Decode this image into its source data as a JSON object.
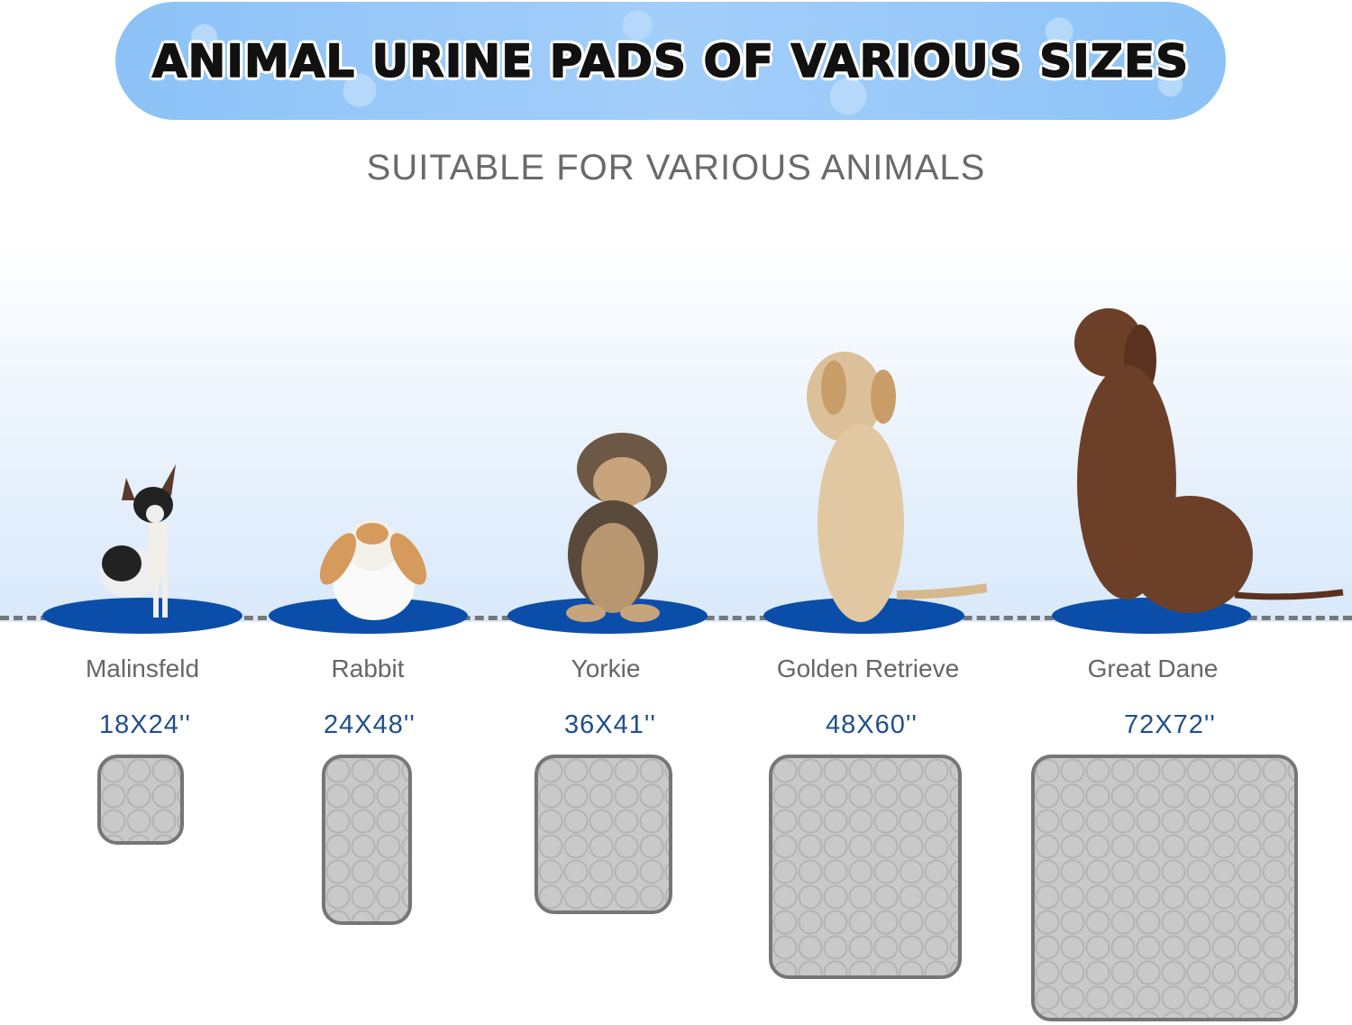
{
  "banner": {
    "title": "ANIMAL URINE PADS OF VARIOUS SIZES"
  },
  "subtitle": "SUITABLE FOR VARIOUS ANIMALS",
  "colors": {
    "banner": "#8cc2f7",
    "disc": "#0b4eaa",
    "size_text": "#1f4f8c",
    "pad": "#c9c9c9"
  },
  "animals": [
    {
      "name": "Malinsfeld",
      "size": "18X24''",
      "image": "chihuahua"
    },
    {
      "name": "Rabbit",
      "size": "24X48''",
      "image": "lop-rabbit"
    },
    {
      "name": "Yorkie",
      "size": "36X41''",
      "image": "yorkie"
    },
    {
      "name": "Golden Retrieve",
      "size": "48X60''",
      "image": "golden-retriever"
    },
    {
      "name": "Great Dane",
      "size": "72X72''",
      "image": "great-dane"
    }
  ]
}
